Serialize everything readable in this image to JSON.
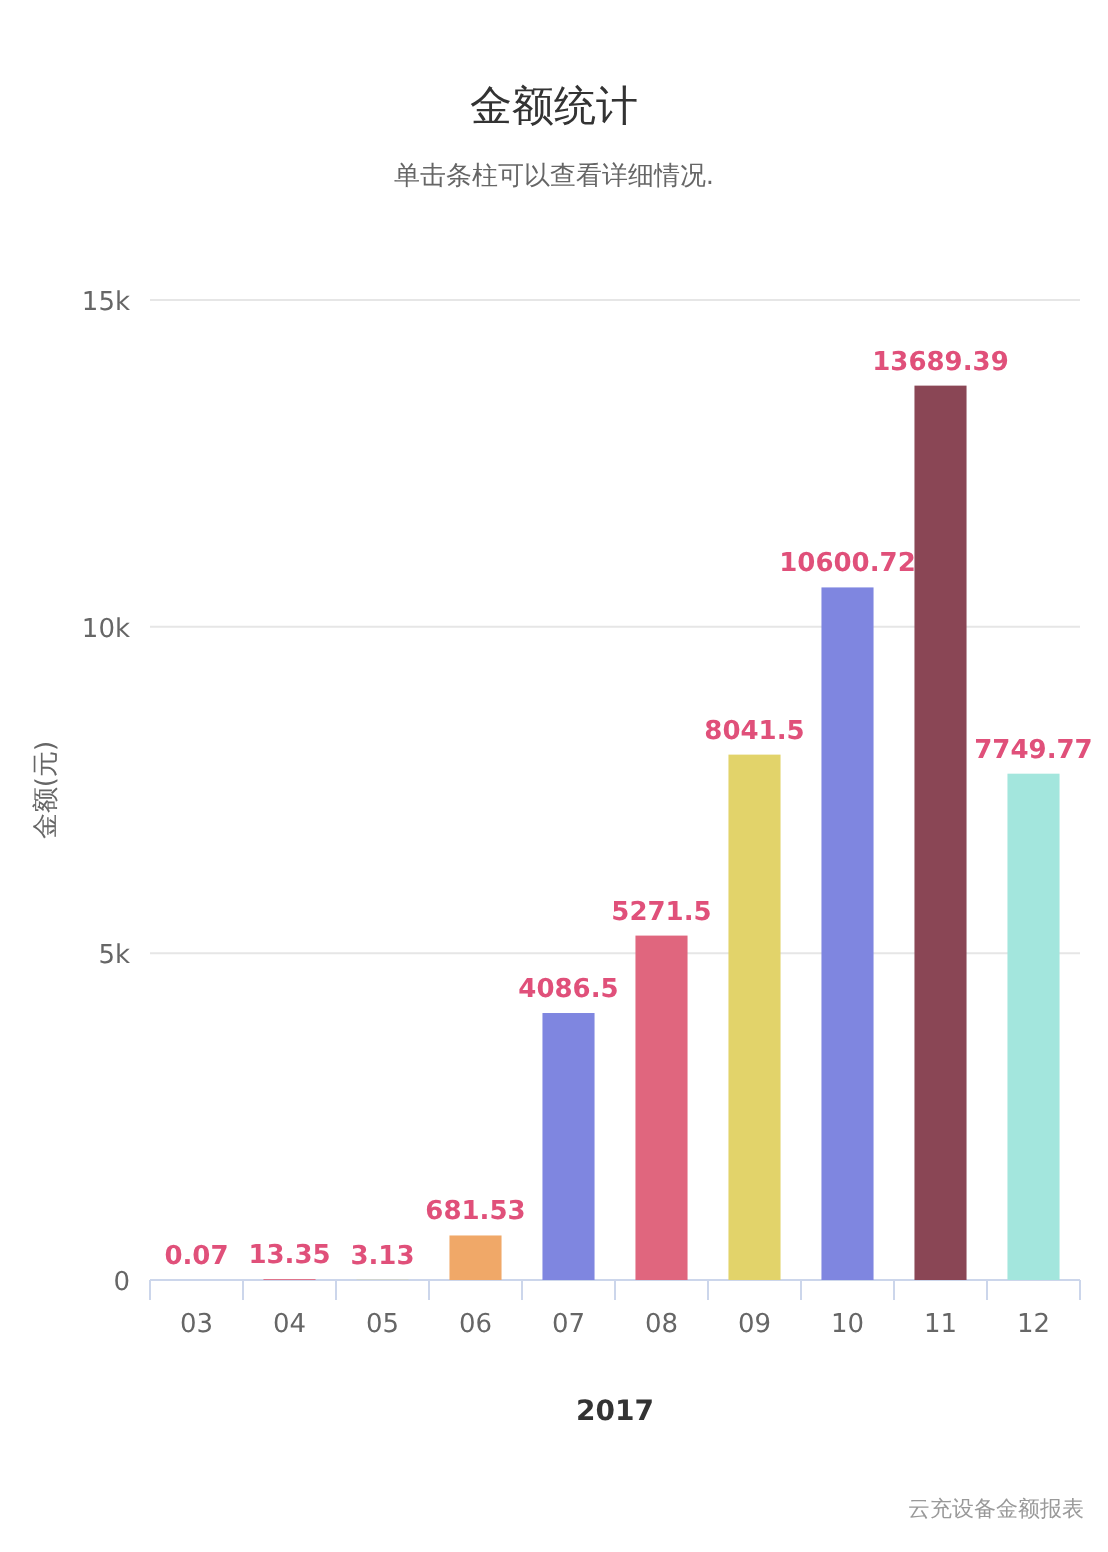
{
  "chart_data": {
    "type": "bar",
    "title": "金额统计",
    "subtitle": "单击条柱可以查看详细情况.",
    "xlabel": "2017",
    "ylabel": "金额(元)",
    "categories": [
      "03",
      "04",
      "05",
      "06",
      "07",
      "08",
      "09",
      "10",
      "11",
      "12"
    ],
    "values": [
      0.07,
      13.35,
      3.13,
      681.53,
      4086.5,
      5271.5,
      8041.5,
      10600.72,
      13689.39,
      7749.77
    ],
    "colors": [
      "#7f86e0",
      "#e0667e",
      "#e2d36a",
      "#f0a868",
      "#7f86e0",
      "#e0667e",
      "#e2d36a",
      "#7f86e0",
      "#8a4655",
      "#a3e6dd"
    ],
    "ylim": [
      0,
      15000
    ],
    "yticks": [
      0,
      {
        "value": 5000,
        "label": "5k"
      },
      {
        "value": 10000,
        "label": "10k"
      },
      {
        "value": 15000,
        "label": "15k"
      }
    ],
    "grid": "y",
    "data_labels": true,
    "annotations": [
      "云充设备金额报表"
    ]
  }
}
